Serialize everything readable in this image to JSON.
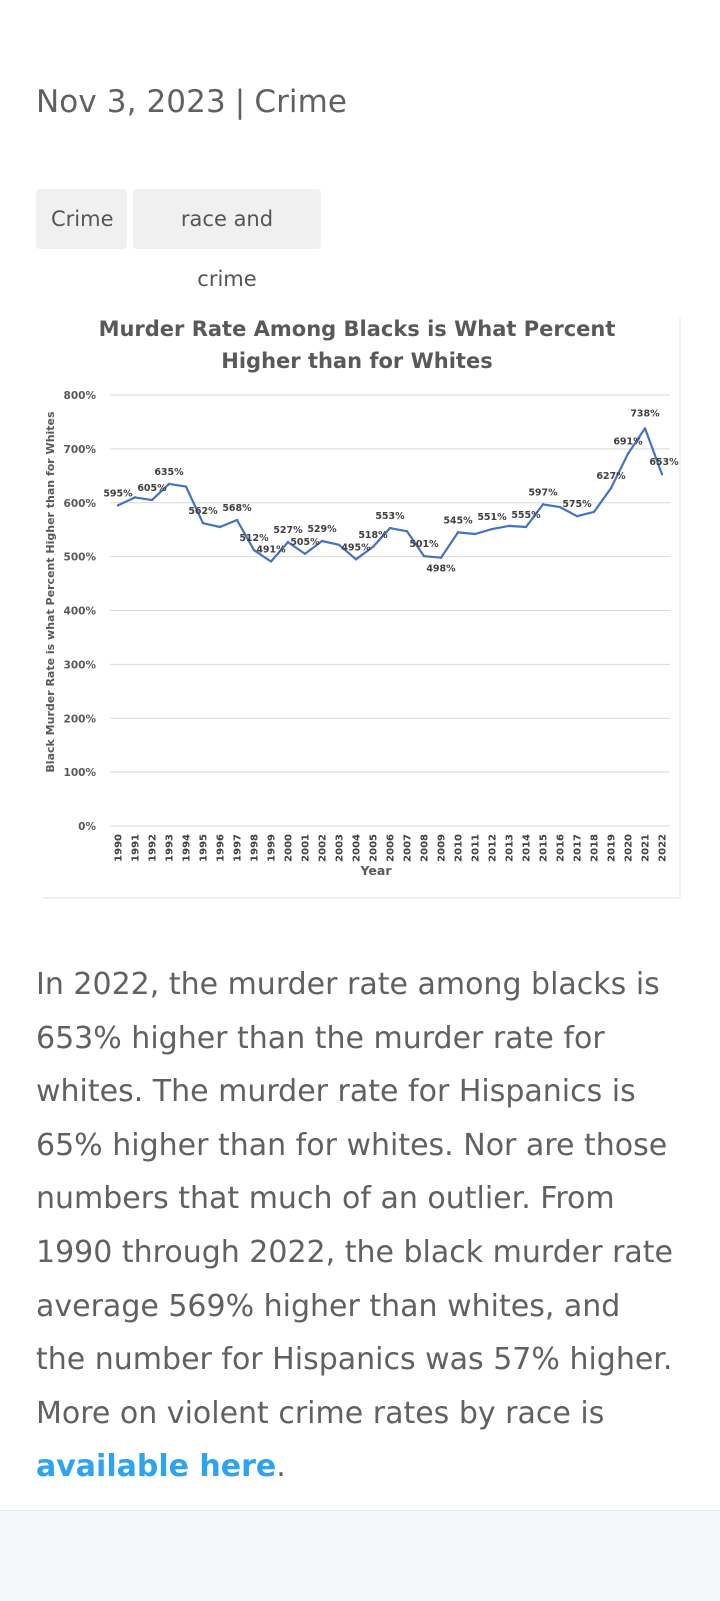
{
  "post": {
    "date": "Nov 3, 2023",
    "separator": "|",
    "category": "Crime",
    "tags": [
      "Crime",
      "race and crime"
    ]
  },
  "chart_data": {
    "type": "line",
    "title": [
      "Murder Rate Among Blacks is What Percent",
      "Higher than for Whites"
    ],
    "xlabel": "Year",
    "ylabel": "Black Murder Rate is what Percent Higher than for Whites",
    "ylim": [
      0,
      800
    ],
    "y_ticks": [
      "0%",
      "100%",
      "200%",
      "300%",
      "400%",
      "500%",
      "600%",
      "700%",
      "800%"
    ],
    "grid": true,
    "series_color": "#4472c4",
    "categories": [
      "1990",
      "1991",
      "1992",
      "1993",
      "1994",
      "1995",
      "1996",
      "1997",
      "1998",
      "1999",
      "2000",
      "2001",
      "2002",
      "2003",
      "2004",
      "2005",
      "2006",
      "2007",
      "2008",
      "2009",
      "2010",
      "2011",
      "2012",
      "2013",
      "2014",
      "2015",
      "2016",
      "2017",
      "2018",
      "2019",
      "2020",
      "2021",
      "2022"
    ],
    "values": [
      595,
      610,
      605,
      635,
      630,
      562,
      555,
      568,
      512,
      491,
      527,
      505,
      529,
      522,
      495,
      518,
      553,
      547,
      501,
      498,
      545,
      542,
      551,
      557,
      555,
      597,
      592,
      575,
      583,
      627,
      691,
      738,
      653
    ],
    "labels": [
      {
        "i": 0,
        "text": "595%"
      },
      {
        "i": 2,
        "text": "605%"
      },
      {
        "i": 3,
        "text": "635%"
      },
      {
        "i": 5,
        "text": "562%"
      },
      {
        "i": 7,
        "text": "568%"
      },
      {
        "i": 8,
        "text": "512%"
      },
      {
        "i": 9,
        "text": "491%"
      },
      {
        "i": 10,
        "text": "527%"
      },
      {
        "i": 11,
        "text": "505%"
      },
      {
        "i": 12,
        "text": "529%"
      },
      {
        "i": 14,
        "text": "495%"
      },
      {
        "i": 15,
        "text": "518%"
      },
      {
        "i": 16,
        "text": "553%"
      },
      {
        "i": 18,
        "text": "501%"
      },
      {
        "i": 19,
        "text": "498%"
      },
      {
        "i": 20,
        "text": "545%"
      },
      {
        "i": 22,
        "text": "551%"
      },
      {
        "i": 24,
        "text": "555%"
      },
      {
        "i": 25,
        "text": "597%"
      },
      {
        "i": 27,
        "text": "575%"
      },
      {
        "i": 29,
        "text": "627%"
      },
      {
        "i": 30,
        "text": "691%"
      },
      {
        "i": 31,
        "text": "738%"
      },
      {
        "i": 32,
        "text": "653%"
      }
    ]
  },
  "article": {
    "text": "In 2022, the murder rate among blacks is 653% higher than the murder rate for whites. The murder rate for Hispanics is 65% higher than for whites. Nor are those numbers that much of an outlier. From 1990 through 2022, the black murder rate average 569% higher than whites, and the number for Hispanics was 57% higher. More on violent crime rates by race is ",
    "link_text": "available here",
    "end": "."
  }
}
